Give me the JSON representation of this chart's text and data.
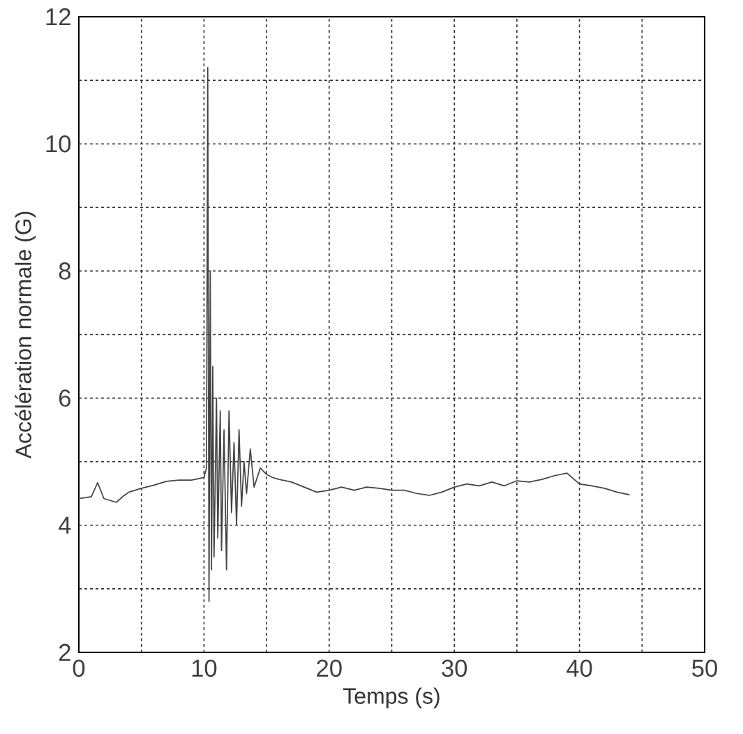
{
  "chart_data": {
    "type": "line",
    "xlabel": "Temps  (s)",
    "ylabel": "Accélération normale (G)",
    "x": [
      0,
      1,
      1.5,
      2,
      3,
      3.5,
      4,
      5,
      6,
      7,
      8,
      9,
      10,
      10.2,
      10.3,
      10.4,
      10.5,
      10.6,
      10.7,
      10.8,
      11,
      11.1,
      11.3,
      11.4,
      11.6,
      11.8,
      12,
      12.2,
      12.4,
      12.6,
      12.8,
      13,
      13.2,
      13.4,
      13.7,
      14,
      14.5,
      15,
      15.5,
      16,
      17,
      18,
      19,
      20,
      21,
      22,
      23,
      24,
      25,
      26,
      27,
      28,
      29,
      30,
      31,
      32,
      33,
      34,
      35,
      36,
      37,
      38,
      39,
      40,
      41,
      42,
      43,
      44
    ],
    "series": [
      {
        "color": "#444444",
        "values": [
          4.42,
          4.45,
          4.67,
          4.42,
          4.36,
          4.45,
          4.52,
          4.58,
          4.63,
          4.69,
          4.71,
          4.71,
          4.75,
          4.9,
          11.2,
          2.8,
          8.0,
          3.3,
          6.5,
          3.5,
          6.0,
          3.8,
          5.8,
          3.6,
          5.5,
          3.3,
          5.8,
          4.2,
          5.3,
          4.0,
          5.5,
          4.3,
          5.0,
          4.5,
          5.2,
          4.6,
          4.9,
          4.8,
          4.75,
          4.72,
          4.68,
          4.6,
          4.52,
          4.55,
          4.6,
          4.55,
          4.6,
          4.58,
          4.55,
          4.55,
          4.5,
          4.47,
          4.52,
          4.6,
          4.65,
          4.62,
          4.68,
          4.62,
          4.7,
          4.68,
          4.72,
          4.78,
          4.82,
          4.65,
          4.62,
          4.58,
          4.52,
          4.48
        ]
      }
    ],
    "xlim": [
      0,
      50
    ],
    "ylim": [
      2,
      12
    ],
    "xticks": [
      0,
      {
        "value": 5,
        "label": null
      },
      10,
      {
        "value": 15,
        "label": null
      },
      20,
      {
        "value": 25,
        "label": null
      },
      30,
      {
        "value": 35,
        "label": null
      },
      40,
      {
        "value": 45,
        "label": null
      },
      50
    ],
    "yticks": [
      2,
      {
        "value": 3,
        "label": null
      },
      4,
      {
        "value": 5,
        "label": null
      },
      6,
      {
        "value": 7,
        "label": null
      },
      8,
      {
        "value": 9,
        "label": null
      },
      10,
      {
        "value": 11,
        "label": null
      },
      12
    ],
    "grid": true,
    "line_style": "solid",
    "marker": "none"
  }
}
